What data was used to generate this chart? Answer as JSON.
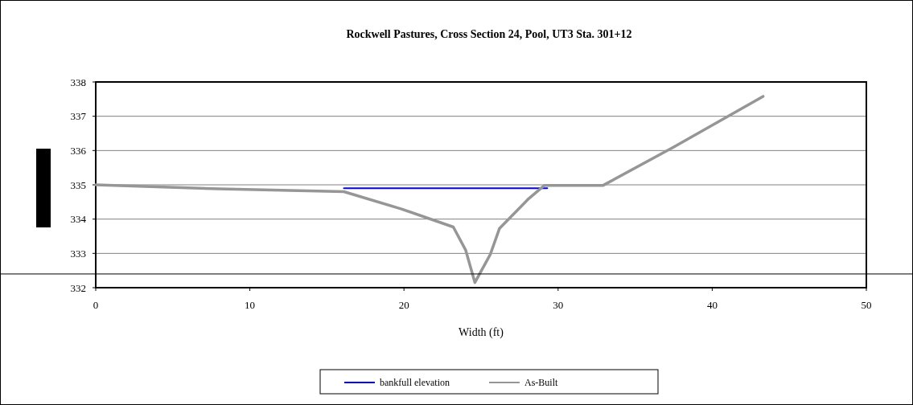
{
  "chart_data": {
    "type": "line",
    "title": "Rockwell Pastures, Cross Section 24, Pool, UT3 Sta. 301+12",
    "xlabel": "Width (ft)",
    "xlim": [
      0,
      50
    ],
    "xticks": [
      0,
      10,
      20,
      30,
      40,
      50
    ],
    "ylim": [
      332,
      338
    ],
    "yticks": [
      332,
      333,
      334,
      335,
      336,
      337,
      338
    ],
    "grid": "y",
    "legend": "bottom",
    "marker": "none",
    "line_style": "solid",
    "series": [
      {
        "name": "bankfull elevation",
        "color": "#0000ff",
        "x": [
          16.1,
          29.3
        ],
        "values": [
          334.9,
          334.9
        ]
      },
      {
        "name": "As-Built",
        "color": "#969696",
        "x": [
          0,
          8,
          16.1,
          19.8,
          23.2,
          24,
          24.6,
          25.6,
          26.2,
          28.1,
          29.1,
          32.9,
          37.5,
          43.3
        ],
        "values": [
          335,
          334.88,
          334.8,
          334.3,
          333.77,
          333.1,
          332.15,
          332.97,
          333.73,
          334.6,
          334.98,
          334.98,
          336.1,
          337.58
        ]
      }
    ],
    "ref_lines": [
      {
        "axis": "y",
        "value": 332.4,
        "color": "#000000"
      }
    ]
  }
}
